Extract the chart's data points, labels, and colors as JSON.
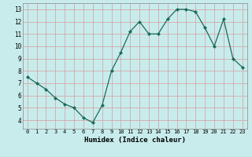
{
  "x": [
    0,
    1,
    2,
    3,
    4,
    5,
    6,
    7,
    8,
    9,
    10,
    11,
    12,
    13,
    14,
    15,
    16,
    17,
    18,
    19,
    20,
    21,
    22,
    23
  ],
  "y": [
    7.5,
    7.0,
    6.5,
    5.8,
    5.3,
    5.0,
    4.2,
    3.8,
    5.2,
    8.0,
    9.5,
    11.2,
    12.0,
    11.0,
    11.0,
    12.2,
    13.0,
    13.0,
    12.8,
    11.5,
    10.0,
    12.2,
    9.0,
    8.3
  ],
  "xlabel": "Humidex (Indice chaleur)",
  "xlim": [
    -0.5,
    23.5
  ],
  "ylim": [
    3.3,
    13.5
  ],
  "yticks": [
    4,
    5,
    6,
    7,
    8,
    9,
    10,
    11,
    12,
    13
  ],
  "xticks": [
    0,
    1,
    2,
    3,
    4,
    5,
    6,
    7,
    8,
    9,
    10,
    11,
    12,
    13,
    14,
    15,
    16,
    17,
    18,
    19,
    20,
    21,
    22,
    23
  ],
  "line_color": "#1a6b5a",
  "marker_color": "#1a6b5a",
  "bg_color": "#c8ecec",
  "grid_color": "#d4a8a8",
  "axis_bg": "#c8ecec"
}
